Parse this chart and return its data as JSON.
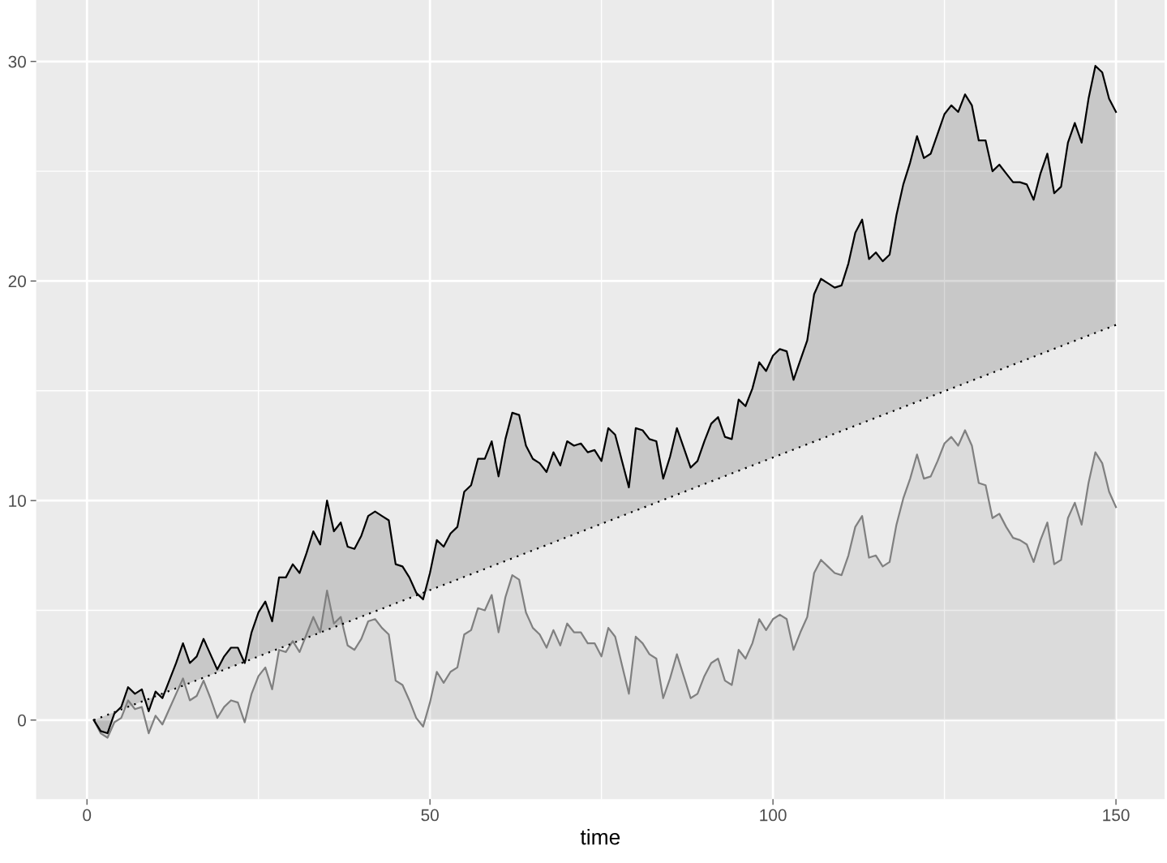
{
  "chart_data": {
    "type": "line",
    "xlabel": "time",
    "xlim": [
      -7.4,
      157.1
    ],
    "ylim": [
      -3.6,
      32.8
    ],
    "xticks": [
      0,
      {
        "value": 25,
        "label": null
      },
      50,
      {
        "value": 75,
        "label": null
      },
      100,
      {
        "value": 125,
        "label": null
      },
      150
    ],
    "yticks": [
      0,
      {
        "value": 5,
        "label": null
      },
      10,
      {
        "value": 15,
        "label": null
      },
      20,
      {
        "value": 25,
        "label": null
      },
      30
    ],
    "grid": true,
    "legend": false,
    "series": [
      {
        "type": "area",
        "color": "#808080",
        "x": [
          1,
          2,
          3,
          4,
          5,
          6,
          7,
          8,
          9,
          10,
          11,
          12,
          13,
          14,
          15,
          16,
          17,
          18,
          19,
          20,
          21,
          22,
          23,
          24,
          25,
          26,
          27,
          28,
          29,
          30,
          31,
          32,
          33,
          34,
          35,
          36,
          37,
          38,
          39,
          40,
          41,
          42,
          43,
          44,
          45,
          46,
          47,
          48,
          49,
          50,
          51,
          52,
          53,
          54,
          55,
          56,
          57,
          58,
          59,
          60,
          61,
          62,
          63,
          64,
          65,
          66,
          67,
          68,
          69,
          70,
          71,
          72,
          73,
          74,
          75,
          76,
          77,
          78,
          79,
          80,
          81,
          82,
          83,
          84,
          85,
          86,
          87,
          88,
          89,
          90,
          91,
          92,
          93,
          94,
          95,
          96,
          97,
          98,
          99,
          100,
          101,
          102,
          103,
          104,
          105,
          106,
          107,
          108,
          109,
          110,
          111,
          112,
          113,
          114,
          115,
          116,
          117,
          118,
          119,
          120,
          121,
          122,
          123,
          124,
          125,
          126,
          127,
          128,
          129,
          130,
          131,
          132,
          133,
          134,
          135,
          136,
          137,
          138,
          139,
          140,
          141,
          142,
          143,
          144,
          145,
          146,
          147,
          148,
          149,
          150
        ],
        "values": [
          0,
          -0.6,
          -0.8,
          -0.1,
          0.1,
          0.9,
          0.5,
          0.6,
          -0.6,
          0.2,
          -0.2,
          0.5,
          1.2,
          1.9,
          0.9,
          1.1,
          1.8,
          1.0,
          0.1,
          0.6,
          0.9,
          0.8,
          -0.1,
          1.2,
          2.0,
          2.4,
          1.4,
          3.2,
          3.1,
          3.6,
          3.1,
          3.9,
          4.7,
          4.0,
          5.9,
          4.4,
          4.7,
          3.4,
          3.2,
          3.7,
          4.5,
          4.6,
          4.2,
          3.9,
          1.8,
          1.6,
          0.9,
          0.1,
          -0.3,
          0.8,
          2.2,
          1.7,
          2.2,
          2.4,
          3.9,
          4.1,
          5.1,
          5.0,
          5.7,
          4.0,
          5.6,
          6.6,
          6.4,
          4.9,
          4.2,
          3.9,
          3.3,
          4.1,
          3.4,
          4.4,
          4.0,
          4.0,
          3.5,
          3.5,
          2.9,
          4.2,
          3.8,
          2.5,
          1.2,
          3.8,
          3.5,
          3.0,
          2.8,
          1.0,
          1.9,
          3.0,
          2.0,
          1.0,
          1.2,
          2.0,
          2.6,
          2.8,
          1.8,
          1.6,
          3.2,
          2.8,
          3.5,
          4.6,
          4.1,
          4.6,
          4.8,
          4.6,
          3.2,
          4.0,
          4.7,
          6.7,
          7.3,
          7.0,
          6.7,
          6.6,
          7.5,
          8.8,
          9.3,
          7.4,
          7.5,
          7.0,
          7.2,
          8.9,
          10.1,
          11.0,
          12.1,
          11.0,
          11.1,
          11.8,
          12.6,
          12.9,
          12.5,
          13.2,
          12.5,
          10.8,
          10.7,
          9.2,
          9.4,
          8.8,
          8.3,
          8.2,
          8.0,
          7.2,
          8.2,
          9.0,
          7.1,
          7.3,
          9.2,
          9.9,
          8.9,
          10.8,
          12.2,
          11.7,
          10.4,
          9.7
        ]
      },
      {
        "color": "#000000",
        "x": [
          1,
          2,
          3,
          4,
          5,
          6,
          7,
          8,
          9,
          10,
          11,
          12,
          13,
          14,
          15,
          16,
          17,
          18,
          19,
          20,
          21,
          22,
          23,
          24,
          25,
          26,
          27,
          28,
          29,
          30,
          31,
          32,
          33,
          34,
          35,
          36,
          37,
          38,
          39,
          40,
          41,
          42,
          43,
          44,
          45,
          46,
          47,
          48,
          49,
          50,
          51,
          52,
          53,
          54,
          55,
          56,
          57,
          58,
          59,
          60,
          61,
          62,
          63,
          64,
          65,
          66,
          67,
          68,
          69,
          70,
          71,
          72,
          73,
          74,
          75,
          76,
          77,
          78,
          79,
          80,
          81,
          82,
          83,
          84,
          85,
          86,
          87,
          88,
          89,
          90,
          91,
          92,
          93,
          94,
          95,
          96,
          97,
          98,
          99,
          100,
          101,
          102,
          103,
          104,
          105,
          106,
          107,
          108,
          109,
          110,
          111,
          112,
          113,
          114,
          115,
          116,
          117,
          118,
          119,
          120,
          121,
          122,
          123,
          124,
          125,
          126,
          127,
          128,
          129,
          130,
          131,
          132,
          133,
          134,
          135,
          136,
          137,
          138,
          139,
          140,
          141,
          142,
          143,
          144,
          145,
          146,
          147,
          148,
          149,
          150
        ],
        "upper": [
          0,
          -0.5,
          -0.6,
          0.3,
          0.6,
          1.5,
          1.2,
          1.4,
          0.4,
          1.3,
          1.0,
          1.8,
          2.6,
          3.5,
          2.6,
          2.9,
          3.7,
          3.0,
          2.3,
          2.9,
          3.3,
          3.3,
          2.6,
          4.0,
          4.9,
          5.4,
          4.5,
          6.5,
          6.5,
          7.1,
          6.7,
          7.6,
          8.6,
          8.0,
          10.0,
          8.6,
          9.0,
          7.9,
          7.8,
          8.4,
          9.3,
          9.5,
          9.3,
          9.1,
          7.1,
          7.0,
          6.5,
          5.8,
          5.5,
          6.7,
          8.2,
          7.9,
          8.5,
          8.8,
          10.4,
          10.7,
          11.9,
          11.9,
          12.7,
          11.1,
          12.8,
          14.0,
          13.9,
          12.5,
          11.9,
          11.7,
          11.3,
          12.2,
          11.6,
          12.7,
          12.5,
          12.6,
          12.2,
          12.3,
          11.8,
          13.3,
          13.0,
          11.8,
          10.6,
          13.3,
          13.2,
          12.8,
          12.7,
          11.0,
          12.0,
          13.3,
          12.4,
          11.5,
          11.8,
          12.7,
          13.5,
          13.8,
          12.9,
          12.8,
          14.6,
          14.3,
          15.1,
          16.3,
          15.9,
          16.6,
          16.9,
          16.8,
          15.5,
          16.4,
          17.3,
          19.4,
          20.1,
          19.9,
          19.7,
          19.8,
          20.8,
          22.2,
          22.8,
          21.0,
          21.3,
          20.9,
          21.2,
          23.0,
          24.4,
          25.4,
          26.6,
          25.6,
          25.8,
          26.7,
          27.6,
          28.0,
          27.7,
          28.5,
          28.0,
          26.4,
          26.4,
          25.0,
          25.3,
          24.9,
          24.5,
          24.5,
          24.4,
          23.7,
          24.9,
          25.8,
          24.0,
          24.3,
          26.3,
          27.2,
          26.3,
          28.3,
          29.8,
          29.5,
          28.3,
          27.7
        ],
        "values": [
          0,
          -0.5,
          -0.6,
          0.3,
          0.6,
          1.5,
          1.2,
          1.4,
          0.4,
          1.3,
          1.0,
          1.8,
          2.6,
          3.5,
          2.6,
          2.9,
          3.7,
          3.0,
          2.3,
          2.9,
          3.3,
          3.3,
          2.6,
          4.0,
          4.9,
          5.4,
          4.5,
          6.5,
          6.5,
          7.1,
          6.7,
          7.6,
          8.6,
          8.0,
          10.0,
          8.6,
          9.0,
          7.9,
          7.8,
          8.4,
          9.3,
          9.5,
          9.3,
          9.1,
          7.1,
          7.0,
          6.5,
          5.8,
          5.5,
          6.7,
          8.2,
          7.9,
          8.5,
          8.8,
          10.4,
          10.7,
          11.9,
          11.9,
          12.7,
          11.1,
          12.8,
          14.0,
          13.9,
          12.5,
          11.9,
          11.7,
          11.3,
          12.2,
          11.6,
          12.7,
          12.5,
          12.6,
          12.2,
          12.3,
          11.8,
          13.3,
          13.0,
          11.8,
          10.6,
          13.3,
          13.2,
          12.8,
          12.7,
          11.0,
          12.0,
          13.3,
          12.4,
          11.5,
          11.8,
          12.7,
          13.5,
          13.8,
          12.9,
          12.8,
          14.6,
          14.3,
          15.1,
          16.3,
          15.9,
          16.6,
          16.9,
          16.8,
          15.5,
          16.4,
          17.3,
          19.4,
          20.1,
          19.9,
          19.7,
          19.8,
          20.8,
          22.2,
          22.8,
          21.0,
          21.3,
          20.9,
          21.2,
          23.0,
          24.4,
          25.4,
          26.6,
          25.6,
          25.8,
          26.7,
          27.6,
          28.0,
          27.7,
          28.5,
          28.0,
          26.4,
          26.4,
          25.0,
          25.3,
          24.9,
          24.5,
          24.5,
          24.4,
          23.7,
          24.9,
          25.8,
          24.0,
          24.3,
          26.3,
          27.2,
          26.3,
          28.3,
          29.8,
          29.5,
          28.3,
          27.7
        ],
        "lower": [
          0,
          0.12,
          0.24,
          0.36,
          0.48,
          0.6,
          0.72,
          0.85,
          0.97,
          1.09,
          1.21,
          1.33,
          1.45,
          1.57,
          1.69,
          1.81,
          1.93,
          2.05,
          2.17,
          2.3,
          2.42,
          2.54,
          2.66,
          2.78,
          2.9,
          3.02,
          3.14,
          3.26,
          3.38,
          3.5,
          3.62,
          3.74,
          3.87,
          3.99,
          4.11,
          4.23,
          4.35,
          4.47,
          4.59,
          4.71,
          4.83,
          4.95,
          5.07,
          5.19,
          5.32,
          5.44,
          5.56,
          5.68,
          5.8,
          5.92,
          6.04,
          6.16,
          6.28,
          6.4,
          6.52,
          6.64,
          6.77,
          6.89,
          7.01,
          7.13,
          7.25,
          7.37,
          7.49,
          7.61,
          7.73,
          7.85,
          7.97,
          8.09,
          8.21,
          8.34,
          8.46,
          8.58,
          8.7,
          8.82,
          8.94,
          9.06,
          9.18,
          9.3,
          9.42,
          9.54,
          9.66,
          9.79,
          9.91,
          10.03,
          10.15,
          10.27,
          10.39,
          10.51,
          10.63,
          10.75,
          10.87,
          10.99,
          11.11,
          11.23,
          11.36,
          11.48,
          11.6,
          11.72,
          11.84,
          11.96,
          12.08,
          12.2,
          12.32,
          12.44,
          12.56,
          12.68,
          12.81,
          12.93,
          13.05,
          13.17,
          13.29,
          13.41,
          13.53,
          13.65,
          13.77,
          13.89,
          14.01,
          14.13,
          14.26,
          14.38,
          14.5,
          14.62,
          14.74,
          14.86,
          14.98,
          15.1,
          15.22,
          15.34,
          15.46,
          15.58,
          15.7,
          15.83,
          15.95,
          16.07,
          16.19,
          16.31,
          16.43,
          16.55,
          16.67,
          16.79,
          16.91,
          17.03,
          17.15,
          17.28,
          17.4,
          17.52,
          17.64,
          17.76,
          17.88,
          18
        ]
      },
      {
        "color": "#000000",
        "line_style": "dotted",
        "x": [
          1,
          150
        ],
        "values": [
          0,
          18
        ]
      }
    ]
  }
}
